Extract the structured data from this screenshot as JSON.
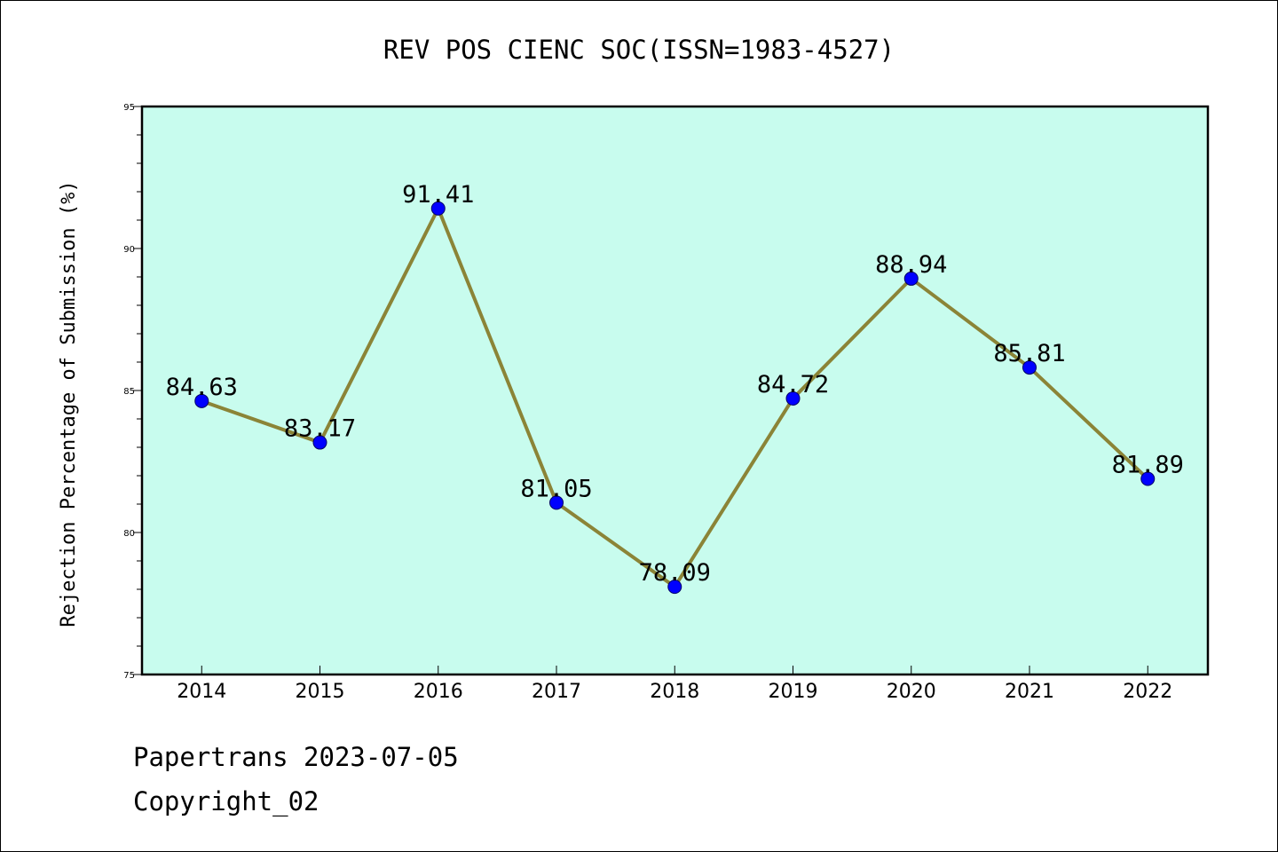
{
  "chart_data": {
    "type": "line",
    "title": "REV POS CIENC SOC(ISSN=1983-4527)",
    "xlabel": "",
    "ylabel": "Rejection Percentage of Submission (%)",
    "categories": [
      "2014",
      "2015",
      "2016",
      "2017",
      "2018",
      "2019",
      "2020",
      "2021",
      "2022"
    ],
    "series": [
      {
        "values": [
          84.63,
          83.17,
          91.41,
          81.05,
          78.09,
          84.72,
          88.94,
          85.81,
          81.89
        ]
      }
    ],
    "data_labels": [
      "84.63",
      "83.17",
      "91.41",
      "81.05",
      "78.09",
      "84.72",
      "88.94",
      "85.81",
      "81.89"
    ],
    "ylim": [
      75,
      95
    ],
    "yticks": [
      75,
      80,
      85,
      90,
      95
    ],
    "y_minor_step": 1,
    "grid": false,
    "legend": "none",
    "colors": {
      "plot_background": "#c8fcee",
      "line": "#8b8437",
      "marker": "#0000ff",
      "axes": "#000000"
    }
  },
  "footer": {
    "line1": "Papertrans 2023-07-05",
    "line2": "Copyright_02"
  }
}
